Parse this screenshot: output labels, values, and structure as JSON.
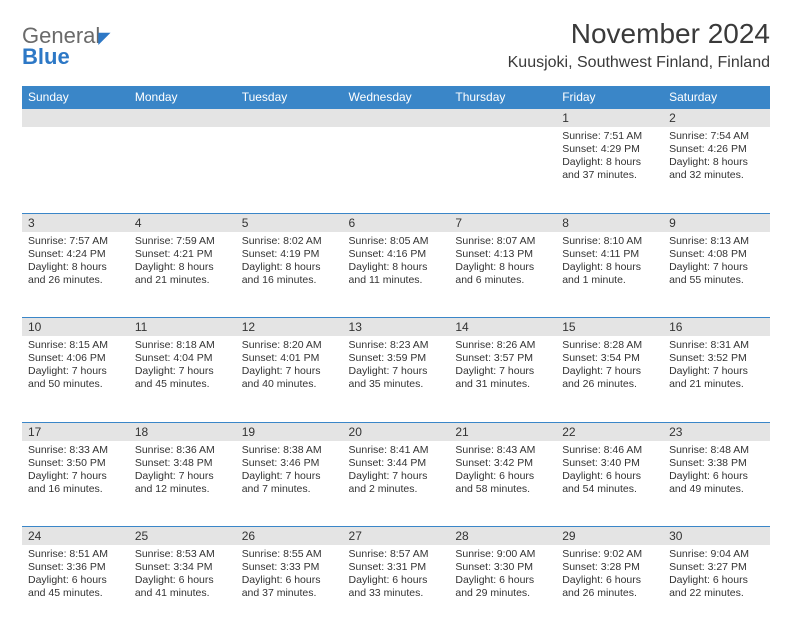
{
  "brand": {
    "part1": "General",
    "part2": "Blue"
  },
  "title": "November 2024",
  "location": "Kuusjoki, Southwest Finland, Finland",
  "colors": {
    "header_bg": "#3a86c8",
    "header_text": "#ffffff",
    "daynum_bg": "#e4e4e4",
    "border": "#3a86c8",
    "text": "#333333",
    "brand_gray": "#6a6a6a",
    "brand_blue": "#2d78c6",
    "background": "#ffffff"
  },
  "typography": {
    "title_fontsize": 28,
    "location_fontsize": 16,
    "weekday_fontsize": 12,
    "daynum_fontsize": 12,
    "cell_fontsize": 10.5,
    "logo_fontsize": 22
  },
  "weekdays": [
    "Sunday",
    "Monday",
    "Tuesday",
    "Wednesday",
    "Thursday",
    "Friday",
    "Saturday"
  ],
  "weeks": [
    [
      null,
      null,
      null,
      null,
      null,
      {
        "n": "1",
        "sr": "7:51 AM",
        "ss": "4:29 PM",
        "dl": "8 hours and 37 minutes."
      },
      {
        "n": "2",
        "sr": "7:54 AM",
        "ss": "4:26 PM",
        "dl": "8 hours and 32 minutes."
      }
    ],
    [
      {
        "n": "3",
        "sr": "7:57 AM",
        "ss": "4:24 PM",
        "dl": "8 hours and 26 minutes."
      },
      {
        "n": "4",
        "sr": "7:59 AM",
        "ss": "4:21 PM",
        "dl": "8 hours and 21 minutes."
      },
      {
        "n": "5",
        "sr": "8:02 AM",
        "ss": "4:19 PM",
        "dl": "8 hours and 16 minutes."
      },
      {
        "n": "6",
        "sr": "8:05 AM",
        "ss": "4:16 PM",
        "dl": "8 hours and 11 minutes."
      },
      {
        "n": "7",
        "sr": "8:07 AM",
        "ss": "4:13 PM",
        "dl": "8 hours and 6 minutes."
      },
      {
        "n": "8",
        "sr": "8:10 AM",
        "ss": "4:11 PM",
        "dl": "8 hours and 1 minute."
      },
      {
        "n": "9",
        "sr": "8:13 AM",
        "ss": "4:08 PM",
        "dl": "7 hours and 55 minutes."
      }
    ],
    [
      {
        "n": "10",
        "sr": "8:15 AM",
        "ss": "4:06 PM",
        "dl": "7 hours and 50 minutes."
      },
      {
        "n": "11",
        "sr": "8:18 AM",
        "ss": "4:04 PM",
        "dl": "7 hours and 45 minutes."
      },
      {
        "n": "12",
        "sr": "8:20 AM",
        "ss": "4:01 PM",
        "dl": "7 hours and 40 minutes."
      },
      {
        "n": "13",
        "sr": "8:23 AM",
        "ss": "3:59 PM",
        "dl": "7 hours and 35 minutes."
      },
      {
        "n": "14",
        "sr": "8:26 AM",
        "ss": "3:57 PM",
        "dl": "7 hours and 31 minutes."
      },
      {
        "n": "15",
        "sr": "8:28 AM",
        "ss": "3:54 PM",
        "dl": "7 hours and 26 minutes."
      },
      {
        "n": "16",
        "sr": "8:31 AM",
        "ss": "3:52 PM",
        "dl": "7 hours and 21 minutes."
      }
    ],
    [
      {
        "n": "17",
        "sr": "8:33 AM",
        "ss": "3:50 PM",
        "dl": "7 hours and 16 minutes."
      },
      {
        "n": "18",
        "sr": "8:36 AM",
        "ss": "3:48 PM",
        "dl": "7 hours and 12 minutes."
      },
      {
        "n": "19",
        "sr": "8:38 AM",
        "ss": "3:46 PM",
        "dl": "7 hours and 7 minutes."
      },
      {
        "n": "20",
        "sr": "8:41 AM",
        "ss": "3:44 PM",
        "dl": "7 hours and 2 minutes."
      },
      {
        "n": "21",
        "sr": "8:43 AM",
        "ss": "3:42 PM",
        "dl": "6 hours and 58 minutes."
      },
      {
        "n": "22",
        "sr": "8:46 AM",
        "ss": "3:40 PM",
        "dl": "6 hours and 54 minutes."
      },
      {
        "n": "23",
        "sr": "8:48 AM",
        "ss": "3:38 PM",
        "dl": "6 hours and 49 minutes."
      }
    ],
    [
      {
        "n": "24",
        "sr": "8:51 AM",
        "ss": "3:36 PM",
        "dl": "6 hours and 45 minutes."
      },
      {
        "n": "25",
        "sr": "8:53 AM",
        "ss": "3:34 PM",
        "dl": "6 hours and 41 minutes."
      },
      {
        "n": "26",
        "sr": "8:55 AM",
        "ss": "3:33 PM",
        "dl": "6 hours and 37 minutes."
      },
      {
        "n": "27",
        "sr": "8:57 AM",
        "ss": "3:31 PM",
        "dl": "6 hours and 33 minutes."
      },
      {
        "n": "28",
        "sr": "9:00 AM",
        "ss": "3:30 PM",
        "dl": "6 hours and 29 minutes."
      },
      {
        "n": "29",
        "sr": "9:02 AM",
        "ss": "3:28 PM",
        "dl": "6 hours and 26 minutes."
      },
      {
        "n": "30",
        "sr": "9:04 AM",
        "ss": "3:27 PM",
        "dl": "6 hours and 22 minutes."
      }
    ]
  ],
  "labels": {
    "sunrise": "Sunrise:",
    "sunset": "Sunset:",
    "daylight": "Daylight:"
  }
}
